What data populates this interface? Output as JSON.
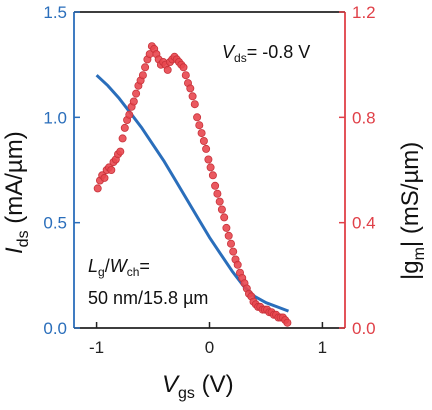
{
  "colors": {
    "left_axis": "#2a6ebb",
    "right_axis": "#e04048",
    "ids_line": "#2a6ebb",
    "gm_marker": "#e8474f",
    "gm_marker_edge": "#c8323a",
    "axis_black": "#222222"
  },
  "chart_data": {
    "type": "line",
    "xlabel": {
      "main": "V",
      "sub": "gs",
      "unit": " (V)"
    },
    "ylabel_left": {
      "main": "I",
      "sub": "ds",
      "unit": " (mA/µm)"
    },
    "ylabel_right": {
      "open": "|g",
      "sub": "m",
      "close": "| (mS/µm)"
    },
    "xlim": [
      -1.2,
      1.2
    ],
    "ylim_left": [
      0,
      1.5
    ],
    "ylim_right": [
      0,
      1.2
    ],
    "x_ticks": [
      "-1",
      "0",
      "1"
    ],
    "x_tick_values": [
      -1,
      0,
      1
    ],
    "y_left_ticks": [
      "0.0",
      "0.5",
      "1.0",
      "1.5"
    ],
    "y_left_tick_values": [
      0,
      0.5,
      1.0,
      1.5
    ],
    "y_right_ticks": [
      "0.0",
      "0.4",
      "0.8",
      "1.2"
    ],
    "y_right_tick_values": [
      0,
      0.4,
      0.8,
      1.2
    ],
    "annotation_vds": {
      "main": "V",
      "sub": "ds",
      "rest": "= -0.8 V"
    },
    "annotation_lw": {
      "l": "L",
      "l_sub": "g",
      "slash": "/",
      "w": "W",
      "w_sub": "ch",
      "eq": "="
    },
    "annotation_dims": "50 nm/15.8 µm",
    "series": [
      {
        "axis": "left",
        "style": "line",
        "x": [
          -1.0,
          -0.9,
          -0.8,
          -0.7,
          -0.6,
          -0.5,
          -0.4,
          -0.3,
          -0.2,
          -0.1,
          0.0,
          0.1,
          0.2,
          0.3,
          0.4,
          0.5,
          0.6,
          0.7
        ],
        "y": [
          1.2,
          1.15,
          1.09,
          1.02,
          0.95,
          0.87,
          0.79,
          0.7,
          0.61,
          0.52,
          0.43,
          0.35,
          0.27,
          0.2,
          0.15,
          0.12,
          0.1,
          0.08
        ]
      },
      {
        "axis": "right",
        "style": "markers",
        "x": [
          -0.99,
          -0.97,
          -0.95,
          -0.93,
          -0.91,
          -0.89,
          -0.87,
          -0.85,
          -0.83,
          -0.81,
          -0.79,
          -0.77,
          -0.75,
          -0.73,
          -0.71,
          -0.69,
          -0.67,
          -0.65,
          -0.63,
          -0.61,
          -0.59,
          -0.57,
          -0.55,
          -0.53,
          -0.51,
          -0.49,
          -0.47,
          -0.45,
          -0.43,
          -0.41,
          -0.39,
          -0.37,
          -0.35,
          -0.33,
          -0.31,
          -0.29,
          -0.27,
          -0.25,
          -0.23,
          -0.21,
          -0.19,
          -0.17,
          -0.15,
          -0.13,
          -0.11,
          -0.09,
          -0.07,
          -0.05,
          -0.03,
          -0.01,
          0.01,
          0.03,
          0.05,
          0.07,
          0.09,
          0.11,
          0.13,
          0.15,
          0.17,
          0.19,
          0.21,
          0.23,
          0.25,
          0.27,
          0.29,
          0.31,
          0.33,
          0.35,
          0.37,
          0.39,
          0.41,
          0.43,
          0.45,
          0.47,
          0.49,
          0.51,
          0.53,
          0.55,
          0.57,
          0.59,
          0.61,
          0.63,
          0.65,
          0.67,
          0.69
        ],
        "y": [
          0.53,
          0.56,
          0.58,
          0.57,
          0.6,
          0.61,
          0.6,
          0.63,
          0.64,
          0.66,
          0.67,
          0.72,
          0.76,
          0.79,
          0.81,
          0.84,
          0.86,
          0.89,
          0.92,
          0.94,
          0.96,
          0.99,
          1.02,
          1.04,
          1.07,
          1.06,
          1.04,
          1.02,
          1.0,
          1.01,
          1.0,
          0.98,
          1.01,
          1.02,
          1.03,
          1.02,
          1.01,
          1.0,
          0.99,
          0.96,
          0.93,
          0.91,
          0.88,
          0.85,
          0.8,
          0.77,
          0.74,
          0.71,
          0.68,
          0.64,
          0.61,
          0.58,
          0.54,
          0.51,
          0.48,
          0.45,
          0.42,
          0.38,
          0.35,
          0.32,
          0.29,
          0.26,
          0.24,
          0.21,
          0.19,
          0.17,
          0.15,
          0.13,
          0.12,
          0.1,
          0.09,
          0.08,
          0.08,
          0.07,
          0.07,
          0.07,
          0.06,
          0.06,
          0.05,
          0.05,
          0.04,
          0.04,
          0.04,
          0.03,
          0.02
        ]
      }
    ]
  }
}
